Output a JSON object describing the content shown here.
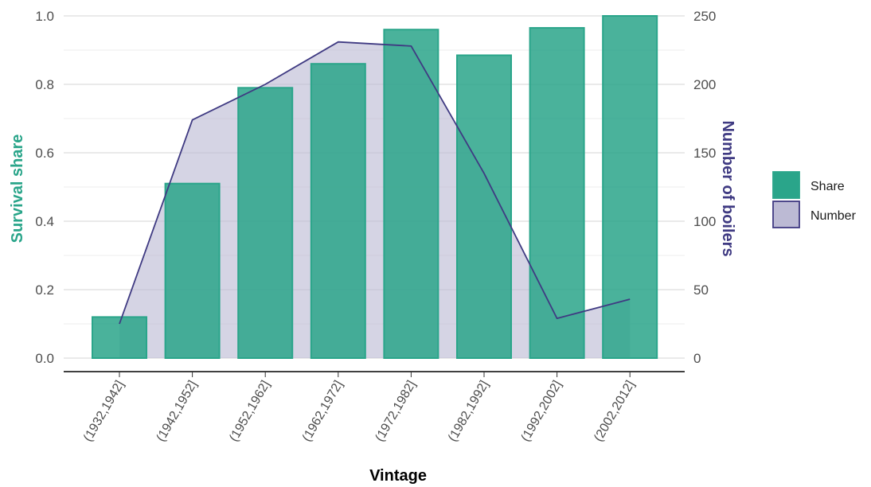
{
  "chart_data": {
    "type": "bar",
    "xlabel": "Vintage",
    "ylabel": "Survival share",
    "y2label": "Number of boilers",
    "categories": [
      "(1932,1942]",
      "(1942,1952]",
      "(1952,1962]",
      "(1962,1972]",
      "(1972,1982]",
      "(1982,1992]",
      "(1992,2002]",
      "(2002,2012]"
    ],
    "series": [
      {
        "name": "Share",
        "type": "bar",
        "axis": "left",
        "color": "#2aa58a",
        "values": [
          0.12,
          0.51,
          0.79,
          0.86,
          0.96,
          0.885,
          0.965,
          1.0
        ]
      },
      {
        "name": "Number",
        "type": "area",
        "axis": "right",
        "color": "#3f3a82",
        "fill": "#bcbad4",
        "values": [
          25,
          174,
          200,
          231,
          228,
          135,
          29,
          43
        ]
      }
    ],
    "ylim": [
      0,
      1.0
    ],
    "y2lim": [
      0,
      250
    ],
    "yticks": [
      "0.0",
      "0.2",
      "0.4",
      "0.6",
      "0.8",
      "1.0"
    ],
    "y2ticks": [
      "0",
      "50",
      "100",
      "150",
      "200",
      "250"
    ],
    "grid": true,
    "legend": {
      "position": "right",
      "entries": [
        "Share",
        "Number"
      ]
    }
  }
}
